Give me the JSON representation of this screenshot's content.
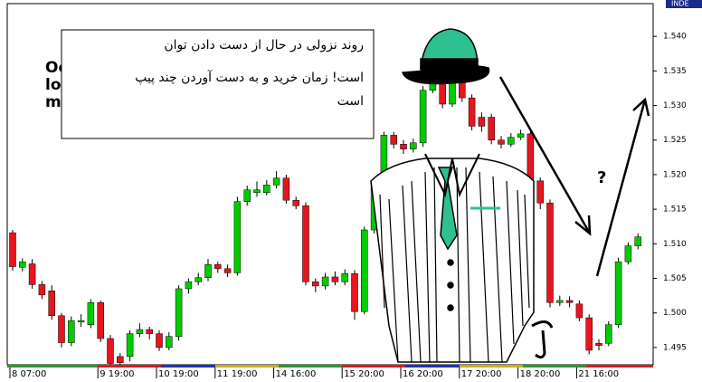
{
  "chart_data": {
    "type": "candlestick",
    "annotation_lines": [
      "روند نزولی در حال از دست دادن توان",
      "است! زمان خرید و به دست آوردن چند پیپ",
      "است"
    ],
    "hidden_text": [
      "Oc",
      "lo",
      "m"
    ],
    "question": "?",
    "indicator_label": "INDE",
    "categories": [
      "8 07:00",
      null,
      null,
      null,
      null,
      null,
      null,
      null,
      null,
      "9 19:00",
      null,
      null,
      null,
      null,
      null,
      "10 19:00",
      null,
      null,
      null,
      null,
      null,
      "11 19:00",
      null,
      null,
      null,
      null,
      null,
      "14 16:00",
      null,
      null,
      null,
      null,
      null,
      null,
      "15 20:00",
      null,
      null,
      null,
      null,
      null,
      "16 20:00",
      null,
      null,
      null,
      null,
      null,
      "17 20:00",
      null,
      null,
      null,
      null,
      null,
      "18 20:00",
      null,
      null,
      null,
      null,
      null,
      "21 16:00",
      null,
      null,
      null,
      null,
      null,
      null
    ],
    "open": [
      1.5116,
      1.5066,
      1.5071,
      1.5041,
      1.5032,
      1.4996,
      1.4957,
      1.4987,
      1.4983,
      1.5015,
      1.4963,
      1.4937,
      1.4937,
      1.497,
      1.4976,
      1.497,
      1.495,
      1.4966,
      1.5035,
      1.5045,
      1.5051,
      1.507,
      1.5064,
      1.5058,
      1.5161,
      1.5174,
      1.5174,
      1.5185,
      1.5195,
      1.5163,
      1.5155,
      1.5045,
      1.5039,
      1.5052,
      1.5045,
      1.5057,
      1.5002,
      1.512,
      1.5191,
      1.5257,
      1.5244,
      1.5237,
      1.5246,
      1.5322,
      1.5348,
      1.5302,
      1.5341,
      1.5311,
      1.5283,
      1.5283,
      1.525,
      1.5244,
      1.5254,
      1.5259,
      1.5191,
      1.5159,
      1.5015,
      1.5018,
      1.5013,
      1.4993,
      1.4956,
      1.4956,
      1.4983,
      1.5074,
      1.5097
    ],
    "high": [
      1.512,
      1.5079,
      1.5078,
      1.5046,
      1.504,
      1.5,
      1.4995,
      1.4998,
      1.502,
      1.5018,
      1.4968,
      1.4942,
      1.4975,
      1.4985,
      1.498,
      1.4975,
      1.4972,
      1.504,
      1.505,
      1.5058,
      1.5078,
      1.5074,
      1.507,
      1.5168,
      1.5184,
      1.519,
      1.5192,
      1.5205,
      1.52,
      1.5168,
      1.516,
      1.505,
      1.5058,
      1.506,
      1.5063,
      1.5062,
      1.5125,
      1.5196,
      1.5262,
      1.5262,
      1.525,
      1.5252,
      1.5328,
      1.5355,
      1.5352,
      1.5346,
      1.5346,
      1.5316,
      1.529,
      1.5288,
      1.5256,
      1.526,
      1.5265,
      1.5264,
      1.5196,
      1.5164,
      1.5025,
      1.5024,
      1.5018,
      1.4998,
      1.4962,
      1.4988,
      1.508,
      1.5102,
      1.5115
    ],
    "low": [
      1.5061,
      1.506,
      1.5035,
      1.502,
      1.499,
      1.495,
      1.4952,
      1.498,
      1.4978,
      1.4958,
      1.4925,
      1.4925,
      1.493,
      1.4965,
      1.4962,
      1.4945,
      1.4946,
      1.496,
      1.5028,
      1.504,
      1.5046,
      1.5058,
      1.5052,
      1.5054,
      1.5155,
      1.5168,
      1.517,
      1.518,
      1.5158,
      1.515,
      1.504,
      1.503,
      1.5034,
      1.504,
      1.504,
      1.499,
      1.4998,
      1.5115,
      1.5185,
      1.5238,
      1.523,
      1.5232,
      1.524,
      1.5318,
      1.5296,
      1.5298,
      1.5305,
      1.5264,
      1.5262,
      1.5244,
      1.5238,
      1.524,
      1.525,
      1.5186,
      1.515,
      1.5008,
      1.501,
      1.5008,
      1.4988,
      1.494,
      1.4946,
      1.4952,
      1.4978,
      1.507,
      1.5092
    ],
    "close": [
      1.5067,
      1.5074,
      1.5041,
      1.5026,
      1.4996,
      1.4957,
      1.4989,
      1.4989,
      1.5015,
      1.4963,
      1.4927,
      1.4928,
      1.497,
      1.4976,
      1.497,
      1.495,
      1.4966,
      1.5035,
      1.5045,
      1.5051,
      1.507,
      1.5064,
      1.5058,
      1.5161,
      1.5178,
      1.5178,
      1.5185,
      1.5195,
      1.5163,
      1.5155,
      1.5045,
      1.5039,
      1.5052,
      1.5045,
      1.5057,
      1.5002,
      1.512,
      1.5191,
      1.5257,
      1.5244,
      1.5237,
      1.5246,
      1.5322,
      1.5348,
      1.5302,
      1.5341,
      1.5311,
      1.527,
      1.527,
      1.525,
      1.5244,
      1.5254,
      1.5259,
      1.5191,
      1.5159,
      1.5015,
      1.5018,
      1.5015,
      1.4993,
      1.4946,
      1.4953,
      1.4983,
      1.5074,
      1.5097,
      1.511
    ],
    "up_color": "#00cc00",
    "down_color": "#e8141e",
    "ylim": [
      1.4925,
      1.5446
    ],
    "yticks": [
      1.495,
      {
        "value": 1.5,
        "label": "1.500"
      },
      1.505,
      {
        "value": 1.51,
        "label": "1.510"
      },
      1.515,
      {
        "value": 1.52,
        "label": "1.520"
      },
      1.525,
      {
        "value": 1.53,
        "label": "1.530"
      },
      1.535,
      {
        "value": 1.54,
        "label": "1.540"
      }
    ]
  }
}
